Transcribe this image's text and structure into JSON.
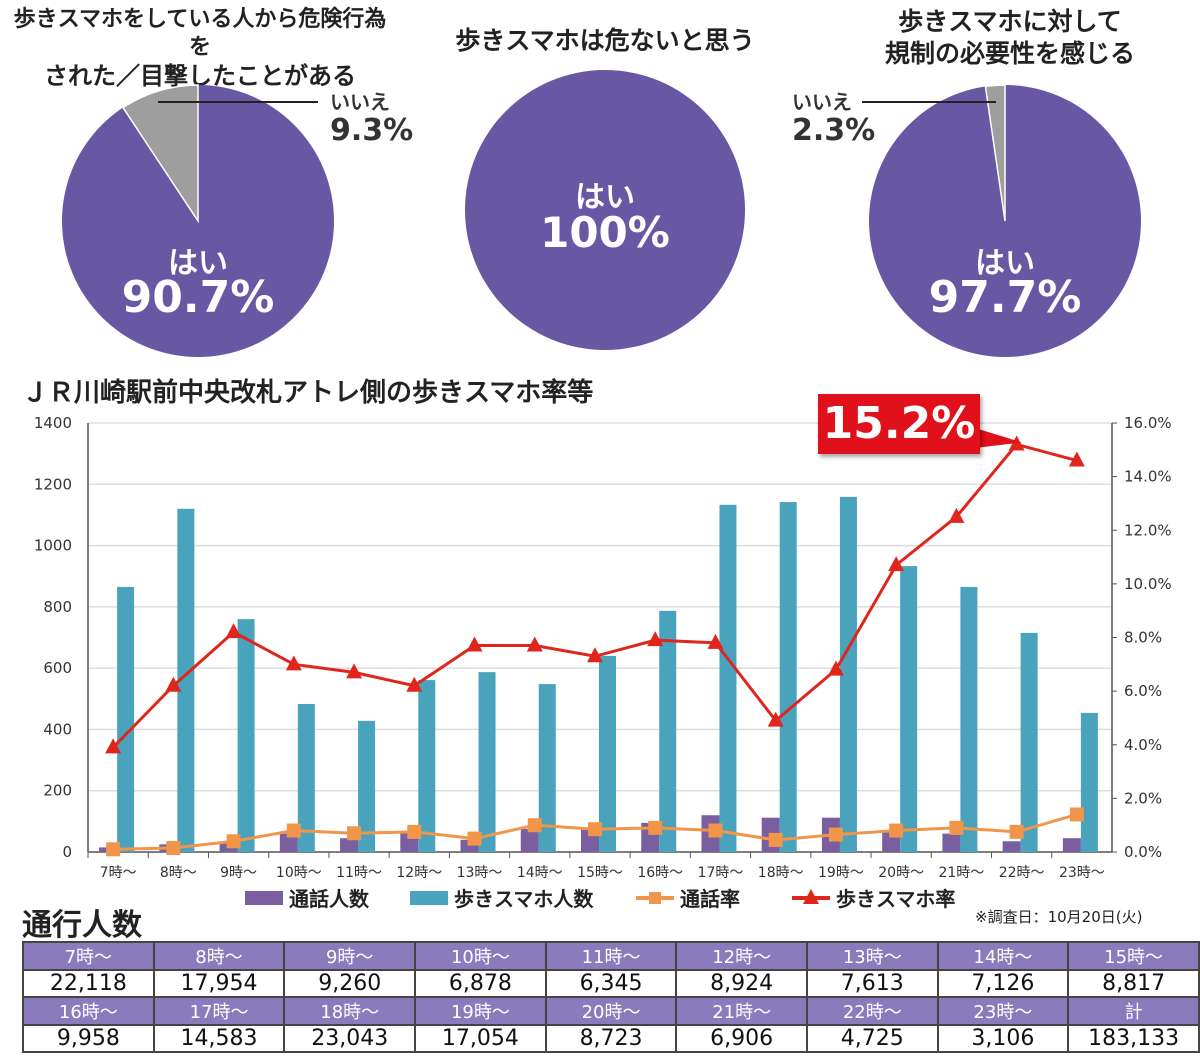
{
  "pies": [
    {
      "title": [
        "歩きスマホをしている人から危険行為を",
        "された／目撃したことがある"
      ],
      "yes_label": "はい",
      "yes_value": "90.7%",
      "no_label": "いいえ",
      "no_value": "9.3%",
      "yes_pct": 90.7
    },
    {
      "title": [
        "歩きスマホは危ないと思う"
      ],
      "yes_label": "はい",
      "yes_value": "100%",
      "yes_pct": 100
    },
    {
      "title": [
        "歩きスマホに対して",
        "規制の必要性を感じる"
      ],
      "yes_label": "はい",
      "yes_value": "97.7%",
      "no_label": "いいえ",
      "no_value": "2.3%",
      "yes_pct": 97.7
    }
  ],
  "colors": {
    "purple": "#6857a3",
    "gray": "#9e9e9e",
    "teal": "#4aa3bc",
    "bar_purple": "#7a5fa0",
    "orange": "#f0954a",
    "red": "#e0261c"
  },
  "chart_data": {
    "type": "bar+line",
    "title": "ＪＲ川崎駅前中央改札アトレ側の歩きスマホ率等",
    "categories": [
      "7時～",
      "8時～",
      "9時～",
      "10時～",
      "11時～",
      "12時～",
      "13時～",
      "14時～",
      "15時～",
      "16時～",
      "17時～",
      "18時～",
      "19時～",
      "20時～",
      "21時～",
      "22時～",
      "23時～"
    ],
    "ylim": [
      0,
      1400
    ],
    "yticks": [
      "0",
      "200",
      "400",
      "600",
      "800",
      "1000",
      "1200",
      "1400"
    ],
    "y2lim": [
      0,
      16
    ],
    "y2ticks": [
      "0.0%",
      "2.0%",
      "4.0%",
      "6.0%",
      "8.0%",
      "10.0%",
      "12.0%",
      "14.0%",
      "16.0%"
    ],
    "series": [
      {
        "name": "通話人数",
        "type": "bar",
        "axis": "left",
        "values": [
          15,
          25,
          30,
          60,
          45,
          65,
          40,
          75,
          80,
          95,
          120,
          112,
          112,
          70,
          60,
          35,
          45
        ]
      },
      {
        "name": "歩きスマホ人数",
        "type": "bar",
        "axis": "left",
        "values": [
          865,
          1120,
          760,
          483,
          428,
          561,
          587,
          548,
          640,
          787,
          1133,
          1142,
          1159,
          933,
          865,
          715,
          454
        ]
      },
      {
        "name": "通話率",
        "type": "line",
        "axis": "right",
        "values": [
          0.1,
          0.15,
          0.4,
          0.8,
          0.7,
          0.75,
          0.5,
          1.0,
          0.85,
          0.9,
          0.8,
          0.45,
          0.65,
          0.8,
          0.9,
          0.75,
          1.4
        ]
      },
      {
        "name": "歩きスマホ率",
        "type": "line",
        "axis": "right",
        "values": [
          3.9,
          6.2,
          8.2,
          7.0,
          6.7,
          6.2,
          7.7,
          7.7,
          7.3,
          7.9,
          7.8,
          4.9,
          6.8,
          10.7,
          12.5,
          15.2,
          14.6
        ]
      }
    ],
    "annotation": "15.2%",
    "legend": "bottom"
  },
  "traffic": {
    "title": "通行人数",
    "note": "※調査日：10月20日(火)",
    "rows": [
      {
        "headers": [
          "7時～",
          "8時～",
          "9時～",
          "10時～",
          "11時～",
          "12時～",
          "13時～",
          "14時～",
          "15時～"
        ],
        "values": [
          "22,118",
          "17,954",
          "9,260",
          "6,878",
          "6,345",
          "8,924",
          "7,613",
          "7,126",
          "8,817"
        ]
      },
      {
        "headers": [
          "16時～",
          "17時～",
          "18時～",
          "19時～",
          "20時～",
          "21時～",
          "22時～",
          "23時～",
          "計"
        ],
        "values": [
          "9,958",
          "14,583",
          "23,043",
          "17,054",
          "8,723",
          "6,906",
          "4,725",
          "3,106",
          "183,133"
        ]
      }
    ]
  }
}
